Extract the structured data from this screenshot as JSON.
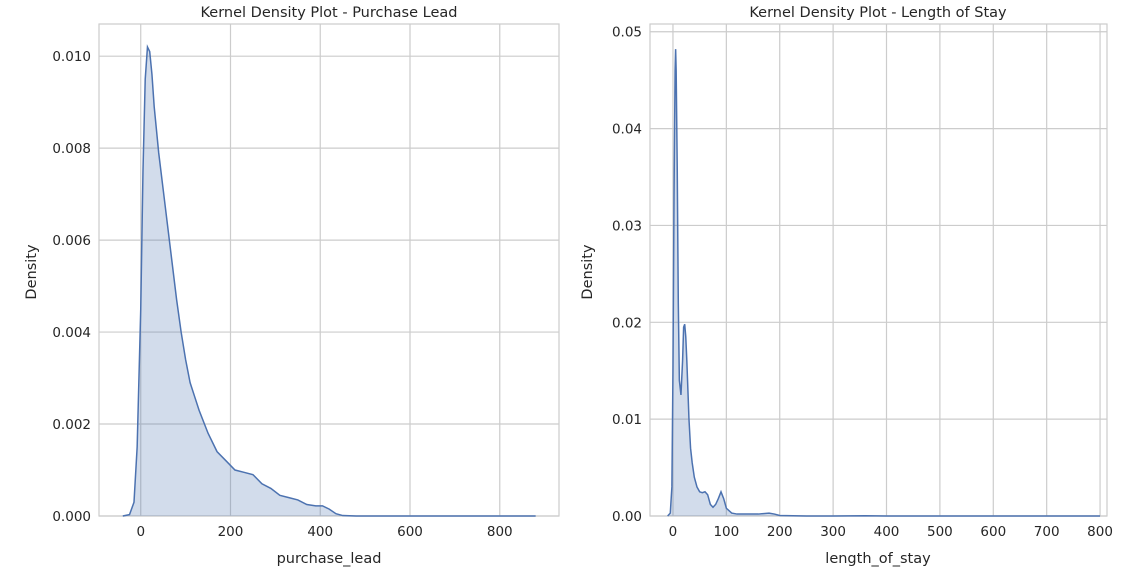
{
  "chart_data": [
    {
      "type": "area",
      "title": "Kernel Density Plot - Purchase Lead",
      "xlabel": "purchase_lead",
      "ylabel": "Density",
      "xlim": [
        -93,
        932
      ],
      "ylim": [
        0,
        0.0107
      ],
      "xticks": [
        0,
        200,
        400,
        600,
        800
      ],
      "yticks": [
        0.0,
        0.002,
        0.004,
        0.006,
        0.008,
        0.01
      ],
      "ytick_labels": [
        "0.000",
        "0.002",
        "0.004",
        "0.006",
        "0.008",
        "0.010"
      ],
      "grid": true,
      "series": [
        {
          "x": [
            -40,
            -25,
            -15,
            -8,
            0,
            5,
            10,
            15,
            20,
            25,
            30,
            40,
            50,
            60,
            70,
            80,
            90,
            100,
            110,
            120,
            130,
            150,
            170,
            190,
            210,
            230,
            250,
            270,
            290,
            310,
            330,
            350,
            370,
            390,
            405,
            420,
            435,
            450,
            480,
            520,
            600,
            700,
            800,
            880
          ],
          "y": [
            0.0,
            3e-05,
            0.0003,
            0.0015,
            0.0045,
            0.0075,
            0.0095,
            0.0102,
            0.0101,
            0.0096,
            0.0089,
            0.0079,
            0.0071,
            0.0063,
            0.0055,
            0.0047,
            0.004,
            0.0034,
            0.0029,
            0.0026,
            0.0023,
            0.0018,
            0.0014,
            0.0012,
            0.001,
            0.00095,
            0.0009,
            0.0007,
            0.0006,
            0.00045,
            0.0004,
            0.00035,
            0.00025,
            0.00022,
            0.00022,
            0.00015,
            5e-05,
            1e-05,
            0.0,
            0.0,
            0.0,
            0.0,
            0.0,
            0.0
          ]
        }
      ]
    },
    {
      "type": "area",
      "title": "Kernel Density Plot - Length of Stay",
      "xlabel": "length_of_stay",
      "ylabel": "Density",
      "xlim": [
        -43,
        813
      ],
      "ylim": [
        0,
        0.0508
      ],
      "xticks": [
        0,
        100,
        200,
        300,
        400,
        500,
        600,
        700,
        800
      ],
      "yticks": [
        0.0,
        0.01,
        0.02,
        0.03,
        0.04,
        0.05
      ],
      "ytick_labels": [
        "0.00",
        "0.01",
        "0.02",
        "0.03",
        "0.04",
        "0.05"
      ],
      "grid": true,
      "series": [
        {
          "x": [
            -10,
            -5,
            -2,
            0,
            2,
            4,
            5,
            6,
            8,
            10,
            12,
            15,
            18,
            20,
            22,
            24,
            26,
            28,
            30,
            33,
            36,
            40,
            45,
            50,
            55,
            60,
            65,
            70,
            75,
            80,
            85,
            90,
            95,
            100,
            110,
            120,
            140,
            160,
            180,
            190,
            200,
            250,
            300,
            360,
            400,
            500,
            600,
            700,
            800
          ],
          "y": [
            0.0,
            0.0003,
            0.003,
            0.015,
            0.033,
            0.046,
            0.0482,
            0.046,
            0.036,
            0.022,
            0.014,
            0.0125,
            0.016,
            0.0195,
            0.0198,
            0.0185,
            0.016,
            0.013,
            0.01,
            0.007,
            0.0055,
            0.004,
            0.003,
            0.0025,
            0.0024,
            0.0025,
            0.0022,
            0.0012,
            0.0009,
            0.0012,
            0.0018,
            0.0025,
            0.0018,
            0.0008,
            0.0003,
            0.0002,
            0.0002,
            0.0002,
            0.0003,
            0.0002,
            5e-05,
            0.0,
            0.0,
            3e-05,
            0.0,
            0.0,
            0.0,
            0.0,
            0.0
          ]
        }
      ]
    }
  ]
}
